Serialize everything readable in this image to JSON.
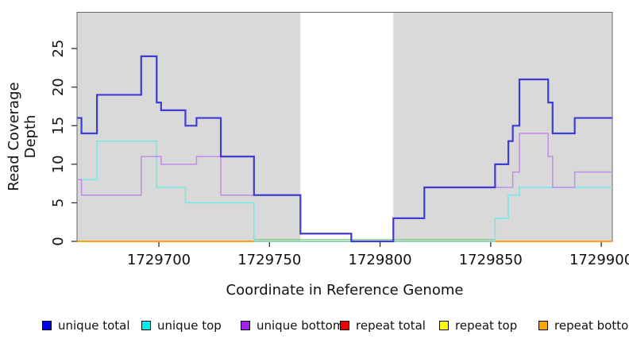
{
  "chart_data": {
    "type": "line",
    "subtype": "step",
    "title": "",
    "xlabel": "Coordinate in Reference Genome",
    "ylabel": "Read Coverage Depth",
    "xlim": [
      1729663,
      1729905
    ],
    "ylim": [
      0,
      29.7
    ],
    "xticks": [
      1729700,
      1729750,
      1729800,
      1729850,
      1729900
    ],
    "yticks": [
      0,
      5,
      10,
      15,
      20,
      25
    ],
    "grid": "off",
    "legend_position": "bottom",
    "panel_background": "#FFFFFF",
    "shaded_color": "#D9D9D9",
    "shaded_regions": [
      [
        1729663,
        1729764
      ],
      [
        1729806,
        1729905
      ]
    ],
    "unshaded_gap": [
      1729764,
      1729806
    ],
    "series": [
      {
        "name": "unique total",
        "color": "#3D3DD1",
        "width": 2.2,
        "x": [
          1729663,
          1729665,
          1729672,
          1729692,
          1729699,
          1729701,
          1729712,
          1729717,
          1729728,
          1729743,
          1729764,
          1729787,
          1729806,
          1729820,
          1729852,
          1729858,
          1729860,
          1729863,
          1729876,
          1729878,
          1729888
        ],
        "y": [
          16,
          14,
          19,
          24,
          18,
          17,
          15,
          16,
          11,
          6,
          1,
          0,
          3,
          7,
          10,
          13,
          15,
          21,
          18,
          14,
          16
        ]
      },
      {
        "name": "unique top",
        "color": "#6FE9E9",
        "width": 1.5,
        "x": [
          1729663,
          1729672,
          1729699,
          1729712,
          1729743,
          1729852,
          1729858,
          1729863
        ],
        "y": [
          8,
          13,
          7,
          5,
          0,
          3,
          6,
          7
        ]
      },
      {
        "name": "unique bottom",
        "color": "#C18CE6",
        "width": 1.5,
        "x": [
          1729663,
          1729665,
          1729692,
          1729701,
          1729717,
          1729728,
          1729764,
          1729787,
          1729806,
          1729820,
          1729860,
          1729863,
          1729876,
          1729878,
          1729888
        ],
        "y": [
          8,
          6,
          11,
          10,
          11,
          6,
          1,
          0,
          3,
          7,
          9,
          14,
          11,
          7,
          9
        ]
      },
      {
        "name": "repeat total",
        "color": "#DD0000",
        "width": 1.5,
        "x": [
          1729663
        ],
        "y": [
          0
        ]
      },
      {
        "name": "repeat top",
        "color": "#FFFF00",
        "width": 1.5,
        "x": [
          1729663
        ],
        "y": [
          0
        ]
      },
      {
        "name": "repeat bottom",
        "color": "#FFA018",
        "width": 2.0,
        "x": [
          1729663
        ],
        "y": [
          0
        ]
      }
    ],
    "zero_overlap_tint": {
      "note": "cyan and orange overlapping at depth 0 render as a pale green line",
      "x": [
        1729743,
        1729852
      ],
      "y": 0.25,
      "color": "#8FCE8F",
      "width": 1.5
    }
  },
  "legend": {
    "items": [
      {
        "label": "unique total",
        "color": "#0000EE"
      },
      {
        "label": "unique top",
        "color": "#00EEEE"
      },
      {
        "label": "unique bottom",
        "color": "#A020F0"
      },
      {
        "label": "repeat total",
        "color": "#EE0000"
      },
      {
        "label": "repeat top",
        "color": "#FFFF00"
      },
      {
        "label": "repeat bottom",
        "color": "#FFA500"
      }
    ]
  },
  "axes": {
    "box_color": "#666666",
    "tick_color": "#333333",
    "tick_label_color": "#111111"
  }
}
